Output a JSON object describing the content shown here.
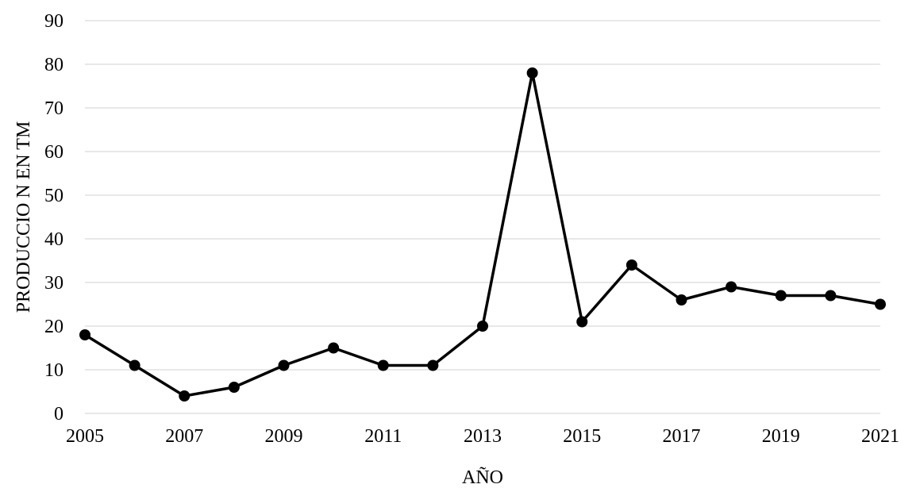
{
  "chart_data": {
    "type": "line",
    "title": "",
    "xlabel": "AÑO",
    "ylabel": "PRODUCCIO N EN TM",
    "x": [
      2005,
      2006,
      2007,
      2008,
      2009,
      2010,
      2011,
      2012,
      2013,
      2014,
      2015,
      2016,
      2017,
      2018,
      2019,
      2020,
      2021
    ],
    "series": [
      {
        "name": "",
        "values": [
          18,
          11,
          4,
          6,
          11,
          15,
          11,
          11,
          20,
          78,
          21,
          34,
          26,
          29,
          27,
          27,
          25
        ]
      }
    ],
    "xlim": [
      2005,
      2021
    ],
    "ylim": [
      0,
      90
    ],
    "x_ticks": [
      2005,
      2007,
      2009,
      2011,
      2013,
      2015,
      2017,
      2019,
      2021
    ],
    "y_ticks": [
      0,
      10,
      20,
      30,
      40,
      50,
      60,
      70,
      80,
      90
    ],
    "grid": "horizontal",
    "legend": "none",
    "line_color": "#000000",
    "marker_color": "#000000",
    "grid_color": "#d9d9d9"
  }
}
